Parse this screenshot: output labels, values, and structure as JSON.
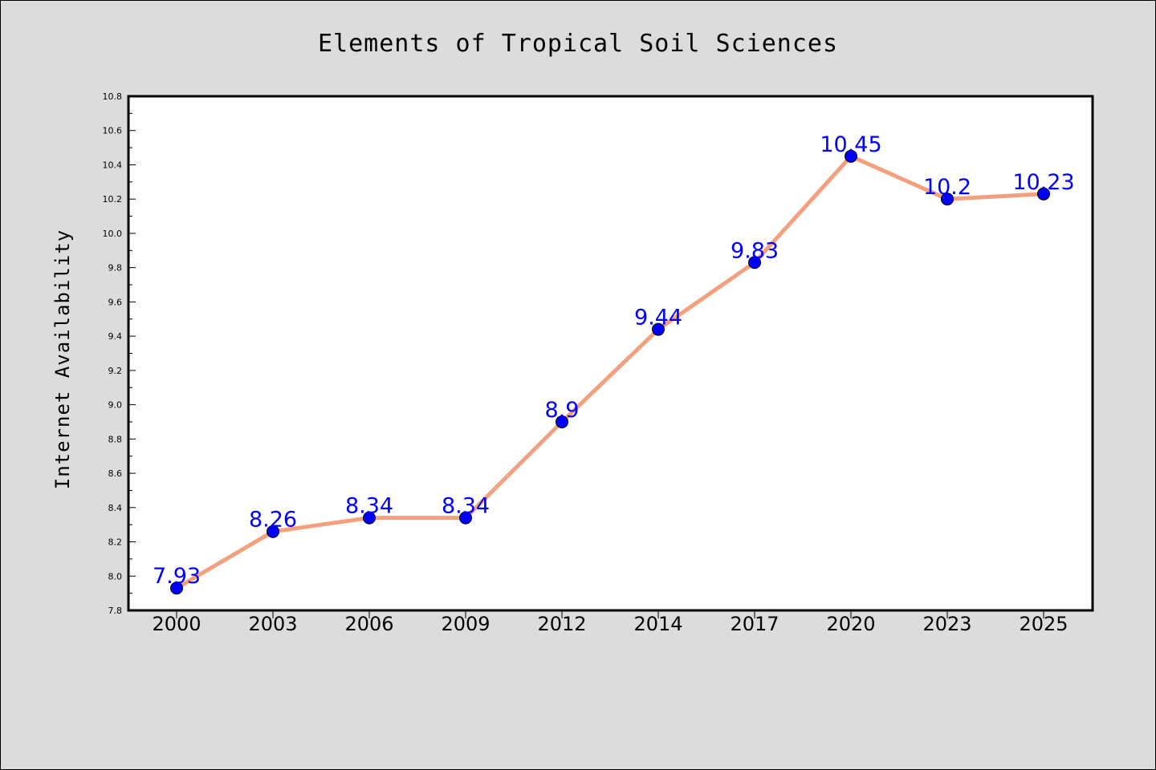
{
  "chart_data": {
    "type": "line",
    "title": "Elements of Tropical Soil Sciences",
    "xlabel": "",
    "ylabel": "Internet Availability",
    "categories": [
      "2000",
      "2003",
      "2006",
      "2009",
      "2012",
      "2014",
      "2017",
      "2020",
      "2023",
      "2025"
    ],
    "series": [
      {
        "values": [
          7.93,
          8.26,
          8.34,
          8.34,
          8.9,
          9.44,
          9.83,
          10.45,
          10.2,
          10.23
        ],
        "data_labels": [
          "7.93",
          "8.26",
          "8.34",
          "8.34",
          "8.9",
          "9.44",
          "9.83",
          "10.45",
          "10.2",
          "10.23"
        ]
      }
    ],
    "ylim": [
      7.8,
      10.8
    ],
    "yticks": [
      "7.8",
      "8.0",
      "8.2",
      "8.4",
      "8.6",
      "8.8",
      "9.0",
      "9.2",
      "9.4",
      "9.6",
      "9.8",
      "10.0",
      "10.2",
      "10.4",
      "10.6",
      "10.8"
    ],
    "grid": false,
    "legend": "none",
    "colors": {
      "line": "#f4a07e",
      "marker": "#0000ff",
      "label": "#0000ff",
      "background": "#dcdcdc",
      "plot_background": "#ffffff"
    }
  }
}
